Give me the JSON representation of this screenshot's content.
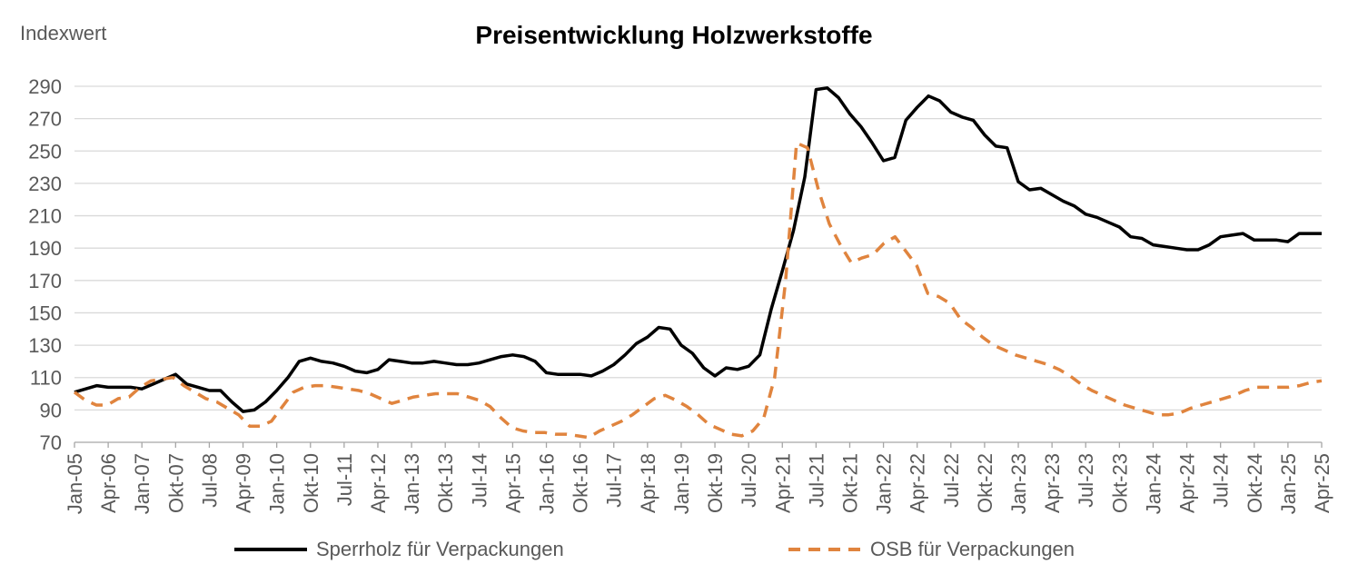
{
  "chart_data": {
    "type": "line",
    "title": "Preisentwicklung Holzwerkstoffe",
    "ylabel": "Indexwert",
    "xlabel": "",
    "ylim": [
      70,
      290
    ],
    "yticks": [
      70,
      90,
      110,
      130,
      150,
      170,
      190,
      210,
      230,
      250,
      270,
      290
    ],
    "grid": true,
    "legend_position": "bottom",
    "x_tick_labels": [
      "Jan-05",
      "Apr-06",
      "Jan-07",
      "Okt-07",
      "Jul-08",
      "Apr-09",
      "Jan-10",
      "Okt-10",
      "Jul-11",
      "Apr-12",
      "Jan-13",
      "Okt-13",
      "Jul-14",
      "Apr-15",
      "Jan-16",
      "Okt-16",
      "Jul-17",
      "Apr-18",
      "Jan-19",
      "Okt-19",
      "Jul-20",
      "Apr-21",
      "Jul-21",
      "Okt-21",
      "Jan-22",
      "Apr-22",
      "Jul-22",
      "Okt-22",
      "Jan-23",
      "Apr-23",
      "Jul-23",
      "Okt-23",
      "Jan-24",
      "Apr-24",
      "Jul-24",
      "Okt-24",
      "Jan-25",
      "Apr-25"
    ],
    "series": [
      {
        "name": "Sperrholz für Verpackungen",
        "color": "#000000",
        "style": "solid",
        "values": [
          101,
          103,
          105,
          104,
          104,
          104,
          103,
          106,
          109,
          112,
          106,
          104,
          102,
          102,
          95,
          89,
          90,
          95,
          102,
          110,
          120,
          122,
          120,
          119,
          117,
          114,
          113,
          115,
          121,
          120,
          119,
          119,
          120,
          119,
          118,
          118,
          119,
          121,
          123,
          124,
          123,
          120,
          113,
          112,
          112,
          112,
          111,
          114,
          118,
          124,
          131,
          135,
          141,
          140,
          130,
          125,
          116,
          111,
          116,
          115,
          117,
          124,
          152,
          176,
          201,
          234,
          288,
          289,
          283,
          273,
          265,
          255,
          244,
          246,
          269,
          277,
          284,
          281,
          274,
          271,
          269,
          260,
          253,
          252,
          231,
          226,
          227,
          223,
          219,
          216,
          211,
          209,
          206,
          203,
          197,
          196,
          192,
          191,
          190,
          189,
          189,
          192,
          197,
          198,
          199,
          195,
          195,
          195,
          194,
          199,
          199,
          199
        ]
      },
      {
        "name": "OSB für Verpackungen",
        "color": "#e0843e",
        "style": "dashed",
        "values": [
          101,
          96,
          93,
          93,
          97,
          98,
          104,
          108,
          109,
          110,
          105,
          101,
          97,
          95,
          91,
          87,
          80,
          80,
          83,
          92,
          101,
          104,
          105,
          105,
          104,
          103,
          102,
          100,
          97,
          94,
          96,
          98,
          99,
          100,
          100,
          100,
          98,
          96,
          92,
          85,
          79,
          77,
          76,
          76,
          75,
          75,
          74,
          73,
          77,
          80,
          83,
          87,
          92,
          97,
          99,
          96,
          92,
          87,
          81,
          78,
          75,
          74,
          77,
          85,
          110,
          170,
          255,
          252,
          226,
          205,
          192,
          181,
          184,
          186,
          193,
          197,
          188,
          179,
          162,
          160,
          156,
          146,
          141,
          135,
          130,
          127,
          124,
          122,
          120,
          118,
          115,
          111,
          106,
          102,
          99,
          96,
          93,
          91,
          89,
          87,
          87,
          88,
          91,
          93,
          95,
          97,
          99,
          102,
          104,
          104,
          104,
          104,
          105,
          107,
          108
        ]
      }
    ]
  }
}
